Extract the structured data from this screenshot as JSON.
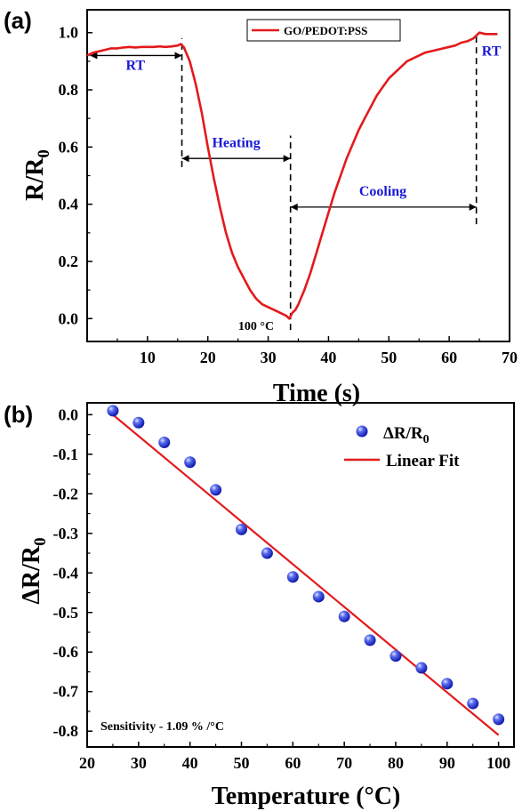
{
  "chart_data": [
    {
      "panel_label": "(a)",
      "type": "line",
      "xlabel": "Time (s)",
      "ylabel": "R/R",
      "ylabel_sub": "0",
      "xlim": [
        0,
        70
      ],
      "ylim": [
        -0.08,
        1.08
      ],
      "xticks": [
        10,
        20,
        30,
        40,
        50,
        60,
        70
      ],
      "yticks": [
        0.0,
        0.2,
        0.4,
        0.6,
        0.8,
        1.0
      ],
      "ytick_labels": [
        "0.0",
        "0.2",
        "0.4",
        "0.6",
        "0.8",
        "1.0"
      ],
      "line_color": "#e31a1c",
      "legend_position": "top-center",
      "series": [
        {
          "name": "GO/PEDOT:PSS",
          "x": [
            0,
            1,
            2,
            3,
            4,
            5,
            6,
            7,
            8,
            9,
            10,
            11,
            12,
            13,
            14,
            15,
            15.5,
            16,
            17,
            18,
            19,
            20,
            21,
            22,
            23,
            24,
            25,
            26,
            27,
            28,
            29,
            30,
            31,
            32,
            33,
            33.5,
            34,
            34.5,
            35,
            36,
            37,
            38,
            39,
            40,
            41,
            42,
            43,
            44,
            45,
            46,
            47,
            48,
            49,
            50,
            51,
            52,
            53,
            54,
            55,
            56,
            57,
            58,
            59,
            60,
            61,
            62,
            63,
            64,
            64.5,
            65,
            66,
            67,
            68
          ],
          "y": [
            0.92,
            0.93,
            0.935,
            0.94,
            0.945,
            0.945,
            0.948,
            0.95,
            0.948,
            0.95,
            0.95,
            0.95,
            0.952,
            0.95,
            0.952,
            0.955,
            0.96,
            0.95,
            0.9,
            0.82,
            0.72,
            0.6,
            0.49,
            0.39,
            0.3,
            0.23,
            0.18,
            0.14,
            0.1,
            0.07,
            0.05,
            0.04,
            0.03,
            0.02,
            0.01,
            0.0,
            0.02,
            0.03,
            0.05,
            0.1,
            0.16,
            0.23,
            0.3,
            0.37,
            0.44,
            0.5,
            0.56,
            0.61,
            0.66,
            0.7,
            0.74,
            0.78,
            0.81,
            0.84,
            0.86,
            0.88,
            0.9,
            0.91,
            0.92,
            0.93,
            0.935,
            0.94,
            0.945,
            0.95,
            0.955,
            0.965,
            0.97,
            0.98,
            0.99,
            1.0,
            0.995,
            0.995,
            0.995
          ]
        }
      ],
      "annotations": [
        {
          "text": "RT",
          "x": 8,
          "y": 0.87,
          "color": "#1a1ad6"
        },
        {
          "text": "Heating",
          "x": 24.7,
          "y": 0.6,
          "color": "#1a1ad6"
        },
        {
          "text": "Cooling",
          "x": 49,
          "y": 0.43,
          "color": "#1a1ad6"
        },
        {
          "text": "RT",
          "x": 67,
          "y": 0.92,
          "color": "#1a1ad6"
        },
        {
          "text": "100 °C",
          "x": 28,
          "y": -0.04,
          "color": "#000000"
        }
      ],
      "markers": {
        "dashed_lines": [
          {
            "x": 15.7,
            "y0": 0.53,
            "y1": 0.98
          },
          {
            "x": 33.7,
            "y0": -0.04,
            "y1": 0.64
          },
          {
            "x": 64.5,
            "y0": 0.33,
            "y1": 1.0
          }
        ],
        "arrows": [
          {
            "x0": 0.5,
            "x1": 15.7,
            "y": 0.92
          },
          {
            "x0": 15.7,
            "x1": 33.7,
            "y": 0.56
          },
          {
            "x0": 33.7,
            "x1": 64.5,
            "y": 0.39
          }
        ]
      }
    },
    {
      "panel_label": "(b)",
      "type": "scatter",
      "xlabel": "Temperature (°C)",
      "ylabel": "ΔR/R",
      "ylabel_sub": "0",
      "xlim": [
        20,
        103
      ],
      "ylim": [
        -0.84,
        0.03
      ],
      "xticks": [
        20,
        30,
        40,
        50,
        60,
        70,
        80,
        90,
        100
      ],
      "yticks": [
        0.0,
        -0.1,
        -0.2,
        -0.3,
        -0.4,
        -0.5,
        -0.6,
        -0.7,
        -0.8
      ],
      "ytick_labels": [
        "0.0",
        "-0.1",
        "-0.2",
        "-0.3",
        "-0.4",
        "-0.5",
        "-0.6",
        "-0.7",
        "-0.8"
      ],
      "marker_color": "#1f2fd6",
      "line_color": "#e31a1c",
      "legend_position": "top-right",
      "series": [
        {
          "name": "ΔR/R",
          "name_sub": "0",
          "x": [
            25,
            30,
            35,
            40,
            45,
            50,
            55,
            60,
            65,
            70,
            75,
            80,
            85,
            90,
            95,
            100
          ],
          "y": [
            0.01,
            -0.02,
            -0.07,
            -0.12,
            -0.19,
            -0.29,
            -0.35,
            -0.41,
            -0.46,
            -0.51,
            -0.57,
            -0.61,
            -0.64,
            -0.68,
            -0.73,
            -0.77
          ]
        },
        {
          "name": "Linear Fit",
          "x": [
            25,
            100
          ],
          "y": [
            0.0,
            -0.81
          ]
        }
      ],
      "annotation": "Sensitivity - 1.09 % /°C"
    }
  ]
}
